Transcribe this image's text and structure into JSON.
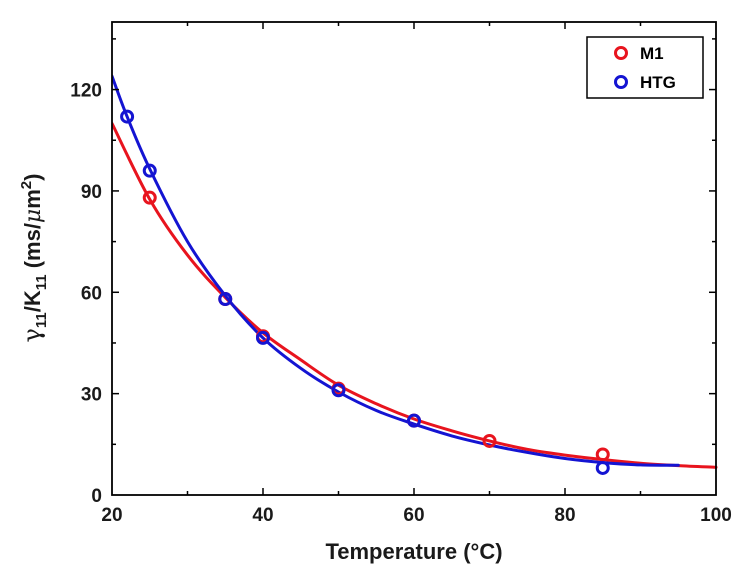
{
  "chart_data": {
    "type": "scatter",
    "title": "",
    "xlabel": "Temperature (°C)",
    "ylabel_parts": {
      "gamma": "γ",
      "gamma_sub": "11",
      "slash_k": "/K",
      "k_sub": "11",
      "units_open": " (ms/",
      "mu": "μ",
      "m": "m",
      "exp": "2",
      "units_close": ")"
    },
    "xlim": [
      20,
      100
    ],
    "ylim": [
      0,
      140
    ],
    "x_ticks": [
      20,
      40,
      60,
      80,
      100
    ],
    "y_ticks": [
      0,
      30,
      60,
      90,
      120
    ],
    "legend_position": "top-right",
    "series": [
      {
        "name": "M1",
        "color": "#e8141e",
        "points": [
          [
            25,
            88
          ],
          [
            35,
            58
          ],
          [
            40,
            47
          ],
          [
            50,
            31.5
          ],
          [
            60,
            22
          ],
          [
            70,
            16
          ],
          [
            85,
            12
          ]
        ],
        "fit_curve": [
          [
            20,
            110
          ],
          [
            25,
            87.5
          ],
          [
            30,
            71
          ],
          [
            35,
            58.5
          ],
          [
            40,
            48
          ],
          [
            45,
            40
          ],
          [
            50,
            32.5
          ],
          [
            55,
            27
          ],
          [
            60,
            22.5
          ],
          [
            65,
            19
          ],
          [
            70,
            16
          ],
          [
            75,
            13.5
          ],
          [
            80,
            11.8
          ],
          [
            85,
            10.5
          ],
          [
            90,
            9.4
          ],
          [
            95,
            8.7
          ],
          [
            100,
            8.2
          ]
        ]
      },
      {
        "name": "HTG",
        "color": "#1414d2",
        "points": [
          [
            22,
            112
          ],
          [
            25,
            96
          ],
          [
            35,
            58
          ],
          [
            40,
            46.5
          ],
          [
            50,
            31
          ],
          [
            60,
            22
          ],
          [
            85,
            8
          ]
        ],
        "fit_curve": [
          [
            20,
            124
          ],
          [
            22,
            112
          ],
          [
            25,
            96.5
          ],
          [
            30,
            75
          ],
          [
            35,
            59
          ],
          [
            40,
            46.5
          ],
          [
            45,
            37.5
          ],
          [
            50,
            30.5
          ],
          [
            55,
            25
          ],
          [
            60,
            21
          ],
          [
            65,
            17.5
          ],
          [
            70,
            14.8
          ],
          [
            75,
            12.6
          ],
          [
            80,
            10.8
          ],
          [
            85,
            9.6
          ],
          [
            90,
            8.9
          ],
          [
            95,
            8.8
          ]
        ]
      }
    ]
  }
}
